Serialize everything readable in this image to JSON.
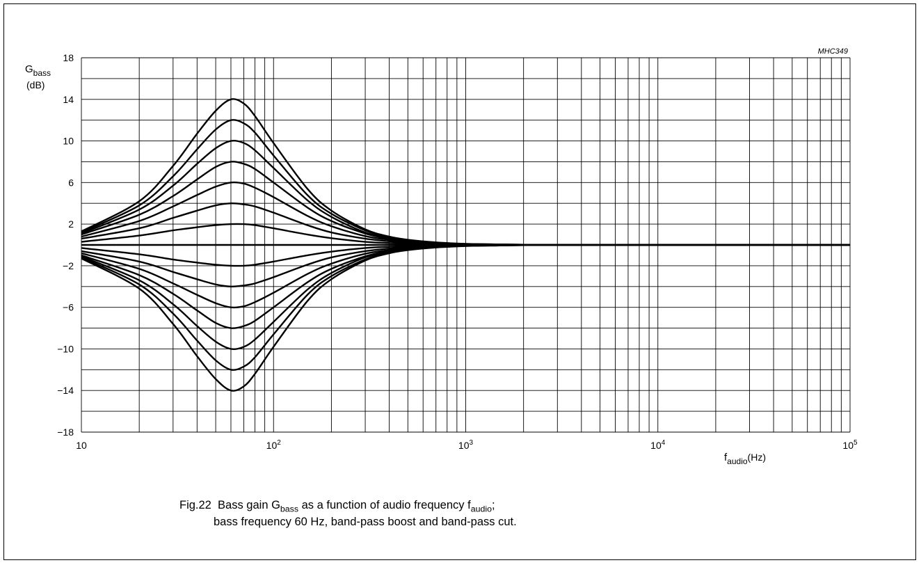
{
  "chart_data": {
    "type": "line",
    "x_scale": "log",
    "xlim": [
      10,
      100000
    ],
    "ylim": [
      -18,
      18
    ],
    "grid": true,
    "corner_label": "MHC349",
    "ylabel": {
      "main": "G",
      "sub": "bass",
      "unit": "(dB)"
    },
    "xlabel": {
      "main": "f",
      "sub": "audio",
      "unit": "(Hz)"
    },
    "y_ticks": [
      {
        "value": 18,
        "label": "18"
      },
      {
        "value": 14,
        "label": "14"
      },
      {
        "value": 10,
        "label": "10"
      },
      {
        "value": 6,
        "label": "6"
      },
      {
        "value": 2,
        "label": "2"
      },
      {
        "value": -2,
        "label": "−2"
      },
      {
        "value": -6,
        "label": "−6"
      },
      {
        "value": -10,
        "label": "−10"
      },
      {
        "value": -14,
        "label": "−14"
      },
      {
        "value": -18,
        "label": "−18"
      }
    ],
    "x_ticks": [
      {
        "value": 10,
        "base": "10",
        "exp": ""
      },
      {
        "value": 100,
        "base": "10",
        "exp": "2"
      },
      {
        "value": 1000,
        "base": "10",
        "exp": "3"
      },
      {
        "value": 10000,
        "base": "10",
        "exp": "4"
      },
      {
        "value": 100000,
        "base": "10",
        "exp": "5"
      }
    ],
    "x": [
      10,
      20,
      30,
      40,
      50,
      60,
      70,
      80,
      100,
      150,
      200,
      300,
      400,
      500,
      700,
      1000,
      1500,
      2000,
      3000,
      5000,
      10000,
      100000
    ],
    "series": [
      {
        "values": [
          1.3,
          4.2,
          7.6,
          10.7,
          12.9,
          14.0,
          13.6,
          12.4,
          9.8,
          5.4,
          3.3,
          1.5,
          0.8,
          0.5,
          0.25,
          0.1,
          0.05,
          0.02,
          0,
          0,
          0,
          0
        ]
      },
      {
        "values": [
          1.2,
          3.8,
          6.6,
          9.2,
          11.1,
          12.0,
          11.7,
          10.8,
          8.6,
          4.8,
          3.0,
          1.4,
          0.75,
          0.45,
          0.22,
          0.1,
          0.05,
          0.02,
          0,
          0,
          0,
          0
        ]
      },
      {
        "values": [
          1.1,
          3.4,
          5.7,
          7.8,
          9.3,
          10.0,
          9.8,
          9.1,
          7.4,
          4.3,
          2.7,
          1.2,
          0.7,
          0.4,
          0.2,
          0.08,
          0.04,
          0.02,
          0,
          0,
          0,
          0
        ]
      },
      {
        "values": [
          1.0,
          2.9,
          4.7,
          6.3,
          7.5,
          8.0,
          7.8,
          7.3,
          6.0,
          3.6,
          2.3,
          1.1,
          0.6,
          0.35,
          0.18,
          0.07,
          0.03,
          0.01,
          0,
          0,
          0,
          0
        ]
      },
      {
        "values": [
          0.8,
          2.3,
          3.7,
          4.8,
          5.6,
          6.0,
          5.9,
          5.5,
          4.6,
          2.8,
          1.8,
          0.85,
          0.5,
          0.3,
          0.15,
          0.06,
          0.03,
          0.01,
          0,
          0,
          0,
          0
        ]
      },
      {
        "values": [
          0.6,
          1.6,
          2.6,
          3.3,
          3.8,
          4.0,
          3.9,
          3.7,
          3.1,
          1.9,
          1.2,
          0.6,
          0.35,
          0.2,
          0.1,
          0.04,
          0.02,
          0.01,
          0,
          0,
          0,
          0
        ]
      },
      {
        "values": [
          0.3,
          0.9,
          1.4,
          1.7,
          1.9,
          2.0,
          2.0,
          1.9,
          1.6,
          1.0,
          0.65,
          0.3,
          0.18,
          0.1,
          0.05,
          0.02,
          0.01,
          0,
          0,
          0,
          0,
          0
        ]
      },
      {
        "values": [
          0,
          0,
          0,
          0,
          0,
          0,
          0,
          0,
          0,
          0,
          0,
          0,
          0,
          0,
          0,
          0,
          0,
          0,
          0,
          0,
          0,
          0
        ]
      },
      {
        "values": [
          -0.3,
          -0.9,
          -1.4,
          -1.7,
          -1.9,
          -2.0,
          -2.0,
          -1.9,
          -1.6,
          -1.0,
          -0.65,
          -0.3,
          -0.18,
          -0.1,
          -0.05,
          -0.02,
          -0.01,
          0,
          0,
          0,
          0,
          0
        ]
      },
      {
        "values": [
          -0.6,
          -1.6,
          -2.6,
          -3.3,
          -3.8,
          -4.0,
          -3.9,
          -3.7,
          -3.1,
          -1.9,
          -1.2,
          -0.6,
          -0.35,
          -0.2,
          -0.1,
          -0.04,
          -0.02,
          -0.01,
          0,
          0,
          0,
          0
        ]
      },
      {
        "values": [
          -0.8,
          -2.3,
          -3.7,
          -4.8,
          -5.6,
          -6.0,
          -5.9,
          -5.5,
          -4.6,
          -2.8,
          -1.8,
          -0.85,
          -0.5,
          -0.3,
          -0.15,
          -0.06,
          -0.03,
          -0.01,
          0,
          0,
          0,
          0
        ]
      },
      {
        "values": [
          -1.0,
          -2.9,
          -4.7,
          -6.3,
          -7.5,
          -8.0,
          -7.8,
          -7.3,
          -6.0,
          -3.6,
          -2.3,
          -1.1,
          -0.6,
          -0.35,
          -0.18,
          -0.07,
          -0.03,
          -0.01,
          0,
          0,
          0,
          0
        ]
      },
      {
        "values": [
          -1.1,
          -3.4,
          -5.7,
          -7.8,
          -9.3,
          -10.0,
          -9.8,
          -9.1,
          -7.4,
          -4.3,
          -2.7,
          -1.2,
          -0.7,
          -0.4,
          -0.2,
          -0.08,
          -0.04,
          -0.02,
          0,
          0,
          0,
          0
        ]
      },
      {
        "values": [
          -1.2,
          -3.8,
          -6.6,
          -9.2,
          -11.1,
          -12.0,
          -11.7,
          -10.8,
          -8.6,
          -4.8,
          -3.0,
          -1.4,
          -0.75,
          -0.45,
          -0.22,
          -0.1,
          -0.05,
          -0.02,
          0,
          0,
          0,
          0
        ]
      },
      {
        "values": [
          -1.3,
          -4.2,
          -7.6,
          -10.7,
          -12.9,
          -14.0,
          -13.6,
          -12.4,
          -9.8,
          -5.4,
          -3.3,
          -1.5,
          -0.8,
          -0.5,
          -0.25,
          -0.1,
          -0.05,
          -0.02,
          0,
          0,
          0,
          0
        ]
      }
    ]
  },
  "caption": {
    "fig": "Fig.22",
    "line1_a": "Bass gain G",
    "line1_sub1": "bass",
    "line1_b": " as a function of audio frequency f",
    "line1_sub2": "audio",
    "line1_c": ";",
    "line2": "bass frequency 60 Hz, band-pass boost and band-pass cut."
  }
}
